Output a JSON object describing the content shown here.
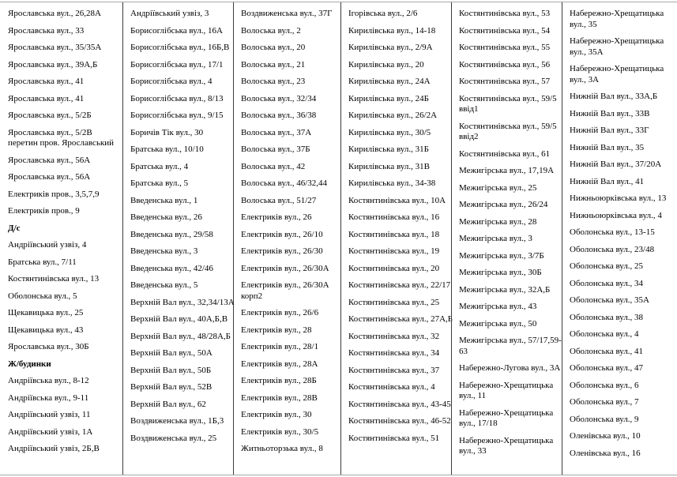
{
  "colors": {
    "background": "#ffffff",
    "text": "#000000",
    "column_border": "#3b3b3b",
    "page_border": "#a8a8a8"
  },
  "document": {
    "columns": [
      {
        "bold_indices": [
          12,
          20
        ],
        "entries": [
          "Ярославська вул., 26,28А",
          "Ярославська вул., 33",
          "Ярославська вул., 35/35А",
          "Ярославська вул., 39А,Б",
          "Ярославська вул., 41",
          "Ярославська вул., 41",
          "Ярославська вул., 5/2Б",
          "Ярославська вул., 5/2В\nперетин пров. Ярославський",
          "Ярославська вул., 56А",
          "Ярославська вул., 56А",
          "Електриків пров., 3,5,7,9",
          "Електриків пров., 9",
          "Д/с",
          "Андріївський узвіз, 4",
          "Братська вул., 7/11",
          "Костянтинівська вул., 13",
          "Оболонська вул., 5",
          "Щекавицька вул., 25",
          "Щекавицька вул., 43",
          "Ярославська вул., 30Б",
          "Ж/будинки",
          "Андріївська вул., 8-12",
          "Андріївська вул., 9-11",
          "Андріївський узвіз, 11",
          "Андріївський узвіз, 1А",
          "Андріївський узвіз, 2Б,В"
        ]
      },
      {
        "bold_indices": [],
        "entries": [
          "Андріївський узвіз, 3",
          "Борисоглібська вул., 16А",
          "Борисоглібська вул., 16Б,В",
          "Борисоглібська вул., 17/1",
          "Борисоглібська вул., 4",
          "Борисоглібська вул., 8/13",
          "Борисоглібська вул., 9/15",
          "Боричів Тік вул., 30",
          "Братська вул., 10/10",
          "Братська вул., 4",
          "Братська вул., 5",
          "Введенська вул., 1",
          "Введенська вул., 26",
          "Введенська вул., 29/58",
          "Введенська вул., 3",
          "Введенська вул., 42/46",
          "Введенська вул., 5",
          "Верхній Вал вул., 32,34/13А",
          "Верхній Вал вул., 40А,Б,В",
          "Верхній Вал вул., 48/28А,Б",
          "Верхній Вал вул., 50А",
          "Верхній Вал вул., 50Б",
          "Верхній Вал вул., 52В",
          "Верхній Вал вул., 62",
          "Воздвиженська вул., 1Б,3",
          "Воздвиженська вул., 25"
        ]
      },
      {
        "bold_indices": [],
        "entries": [
          "Воздвиженська вул., 37Г",
          "Волоська вул., 2",
          "Волоська вул., 20",
          "Волоська вул., 21",
          "Волоська вул., 23",
          "Волоська вул., 32/34",
          "Волоська вул., 36/38",
          "Волоська вул., 37А",
          "Волоська вул., 37Б",
          "Волоська вул., 42",
          "Волоська вул., 46/32,44",
          "Волоська вул., 51/27",
          "Електриків вул., 26",
          "Електриків вул., 26/10",
          "Електриків вул., 26/30",
          "Електриків вул., 26/30А",
          "Електриків вул., 26/30А\nкорп2",
          "Електриків вул., 26/6",
          "Електриків вул., 28",
          "Електриків вул., 28/1",
          "Електриків вул., 28А",
          "Електриків вул., 28Б",
          "Електриків вул., 28В",
          "Електриків вул., 30",
          "Електриків вул., 30/5",
          "Житньоторзька вул., 8"
        ]
      },
      {
        "bold_indices": [],
        "entries": [
          "Ігорівська вул., 2/6",
          "Кирилівська вул., 14-18",
          "Кирилівська вул., 2/9А",
          "Кирилівська вул., 20",
          "Кирилівська вул., 24А",
          "Кирилівська вул., 24Б",
          "Кирилівська вул., 26/2А",
          "Кирилівська вул., 30/5",
          "Кирилівська вул., 31Б",
          "Кирилівська вул., 31В",
          "Кирилівська вул., 34-38",
          "Костянтинівська вул., 10А",
          "Костянтинівська вул., 16",
          "Костянтинівська вул., 18",
          "Костянтинівська вул., 19",
          "Костянтинівська вул., 20",
          "Костянтинівська вул., 22/17",
          "Костянтинівська вул., 25",
          "Костянтинівська вул., 27А,Б",
          "Костянтинівська вул., 32",
          "Костянтинівська вул., 34",
          "Костянтинівська вул., 37",
          "Костянтинівська вул., 4",
          "Костянтинівська вул., 43-45",
          "Костянтинівська вул., 46-52",
          "Костянтинівська вул., 51"
        ]
      },
      {
        "bold_indices": [],
        "entries": [
          "Костянтинівська вул., 53",
          "Костянтинівська вул., 54",
          "Костянтинівська вул., 55",
          "Костянтинівська вул., 56",
          "Костянтинівська вул., 57",
          "Костянтинівська вул., 59/5\nввід1",
          "Костянтинівська вул., 59/5\nввід2",
          "Костянтинівська вул., 61",
          "Межигірська вул., 17,19А",
          "Межигірська вул., 25",
          "Межигірська вул., 26/24",
          "Межигірська вул., 28",
          "Межигірська вул., 3",
          "Межигірська вул., 3/7Б",
          "Межигірська вул., 30Б",
          "Межигірська вул., 32А,Б",
          "Межигірська вул., 43",
          "Межигірська вул., 50",
          "Межигірська вул., 57/17,59-\n63",
          "Набережно-Лугова вул., 3А",
          "Набережно-Хрещатицька\nвул., 11",
          "Набережно-Хрещатицька\nвул., 17/18",
          "Набережно-Хрещатицька\nвул., 33"
        ]
      },
      {
        "bold_indices": [],
        "entries": [
          "Набережно-Хрещатицька\nвул., 35",
          "Набережно-Хрещатицька\nвул., 35А",
          "Набережно-Хрещатицька\nвул., 3А",
          "Нижній Вал вул., 33А,Б",
          "Нижній Вал вул., 33В",
          "Нижній Вал вул., 33Г",
          "Нижній Вал вул., 35",
          "Нижній Вал вул., 37/20А",
          "Нижній Вал вул., 41",
          "Нижньоюрківська вул., 13",
          "Нижньоюрківська вул., 4",
          "Оболонська вул., 13-15",
          "Оболонська вул., 23/48",
          "Оболонська вул., 25",
          "Оболонська вул., 34",
          "Оболонська вул., 35А",
          "Оболонська вул., 38",
          "Оболонська вул., 4",
          "Оболонська вул., 41",
          "Оболонська вул., 47",
          "Оболонська вул., 6",
          "Оболонська вул., 7",
          "Оболонська вул., 9",
          "Оленівська вул., 10",
          "Оленівська вул., 16"
        ]
      }
    ]
  }
}
